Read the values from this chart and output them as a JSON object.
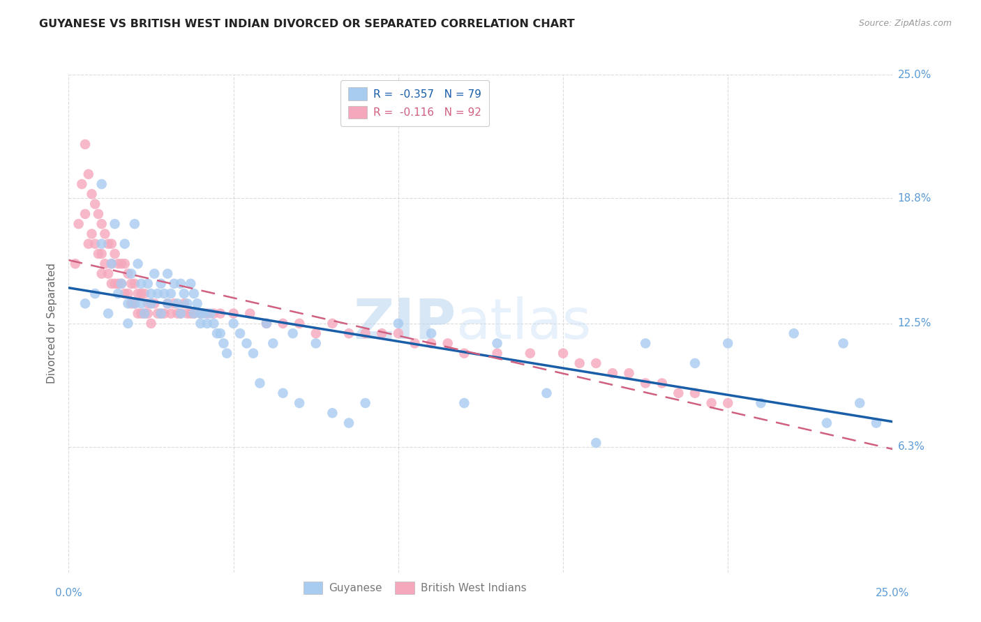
{
  "title": "GUYANESE VS BRITISH WEST INDIAN DIVORCED OR SEPARATED CORRELATION CHART",
  "source": "Source: ZipAtlas.com",
  "ylabel": "Divorced or Separated",
  "watermark_zip": "ZIP",
  "watermark_atlas": "atlas",
  "legend_r1": "R =  -0.357   N = 79",
  "legend_r2": "R =  -0.116   N = 92",
  "color_blue": "#A8CBF0",
  "color_blue_line": "#1A5EA8",
  "color_pink": "#F5A8BC",
  "color_pink_line": "#D06080",
  "color_axis_labels": "#5B9BD5",
  "background_color": "#FFFFFF",
  "grid_color": "#CCCCCC",
  "xlim": [
    0.0,
    0.25
  ],
  "ylim": [
    0.0,
    0.25
  ],
  "ytick_vals": [
    0.063,
    0.125,
    0.188,
    0.25
  ],
  "ytick_labels": [
    "6.3%",
    "12.5%",
    "18.8%",
    "25.0%"
  ],
  "xtick_vals": [
    0.0,
    0.05,
    0.1,
    0.15,
    0.2,
    0.25
  ],
  "guyanese_x": [
    0.005,
    0.008,
    0.01,
    0.01,
    0.012,
    0.013,
    0.014,
    0.015,
    0.016,
    0.017,
    0.018,
    0.018,
    0.019,
    0.02,
    0.02,
    0.021,
    0.022,
    0.022,
    0.023,
    0.024,
    0.025,
    0.025,
    0.026,
    0.027,
    0.028,
    0.028,
    0.029,
    0.03,
    0.03,
    0.031,
    0.032,
    0.033,
    0.034,
    0.034,
    0.035,
    0.036,
    0.037,
    0.038,
    0.038,
    0.039,
    0.04,
    0.04,
    0.041,
    0.042,
    0.043,
    0.044,
    0.045,
    0.046,
    0.047,
    0.048,
    0.05,
    0.052,
    0.054,
    0.056,
    0.058,
    0.06,
    0.062,
    0.065,
    0.068,
    0.07,
    0.075,
    0.08,
    0.085,
    0.09,
    0.1,
    0.11,
    0.12,
    0.13,
    0.145,
    0.16,
    0.175,
    0.19,
    0.2,
    0.21,
    0.22,
    0.23,
    0.235,
    0.24,
    0.245
  ],
  "guyanese_y": [
    0.135,
    0.14,
    0.195,
    0.165,
    0.13,
    0.155,
    0.175,
    0.14,
    0.145,
    0.165,
    0.135,
    0.125,
    0.15,
    0.175,
    0.135,
    0.155,
    0.145,
    0.135,
    0.13,
    0.145,
    0.14,
    0.135,
    0.15,
    0.14,
    0.145,
    0.13,
    0.14,
    0.15,
    0.135,
    0.14,
    0.145,
    0.135,
    0.145,
    0.13,
    0.14,
    0.135,
    0.145,
    0.14,
    0.13,
    0.135,
    0.13,
    0.125,
    0.13,
    0.125,
    0.13,
    0.125,
    0.12,
    0.12,
    0.115,
    0.11,
    0.125,
    0.12,
    0.115,
    0.11,
    0.095,
    0.125,
    0.115,
    0.09,
    0.12,
    0.085,
    0.115,
    0.08,
    0.075,
    0.085,
    0.125,
    0.12,
    0.085,
    0.115,
    0.09,
    0.065,
    0.115,
    0.105,
    0.115,
    0.085,
    0.12,
    0.075,
    0.115,
    0.085,
    0.075
  ],
  "bwi_x": [
    0.002,
    0.003,
    0.004,
    0.005,
    0.005,
    0.006,
    0.006,
    0.007,
    0.007,
    0.008,
    0.008,
    0.009,
    0.009,
    0.01,
    0.01,
    0.01,
    0.011,
    0.011,
    0.012,
    0.012,
    0.013,
    0.013,
    0.013,
    0.014,
    0.014,
    0.015,
    0.015,
    0.016,
    0.016,
    0.017,
    0.017,
    0.018,
    0.018,
    0.019,
    0.019,
    0.02,
    0.02,
    0.021,
    0.021,
    0.022,
    0.022,
    0.023,
    0.023,
    0.024,
    0.024,
    0.025,
    0.025,
    0.026,
    0.027,
    0.028,
    0.029,
    0.03,
    0.031,
    0.032,
    0.033,
    0.034,
    0.035,
    0.036,
    0.037,
    0.038,
    0.04,
    0.042,
    0.044,
    0.046,
    0.05,
    0.055,
    0.06,
    0.065,
    0.07,
    0.075,
    0.08,
    0.085,
    0.09,
    0.095,
    0.1,
    0.105,
    0.11,
    0.115,
    0.12,
    0.13,
    0.14,
    0.15,
    0.155,
    0.16,
    0.165,
    0.17,
    0.175,
    0.18,
    0.185,
    0.19,
    0.195,
    0.2
  ],
  "bwi_y": [
    0.155,
    0.175,
    0.195,
    0.215,
    0.18,
    0.2,
    0.165,
    0.19,
    0.17,
    0.185,
    0.165,
    0.18,
    0.16,
    0.175,
    0.16,
    0.15,
    0.17,
    0.155,
    0.165,
    0.15,
    0.165,
    0.155,
    0.145,
    0.16,
    0.145,
    0.155,
    0.145,
    0.155,
    0.145,
    0.155,
    0.14,
    0.15,
    0.14,
    0.145,
    0.135,
    0.145,
    0.135,
    0.14,
    0.13,
    0.14,
    0.13,
    0.14,
    0.13,
    0.135,
    0.13,
    0.135,
    0.125,
    0.135,
    0.13,
    0.13,
    0.13,
    0.135,
    0.13,
    0.135,
    0.13,
    0.13,
    0.135,
    0.13,
    0.13,
    0.13,
    0.13,
    0.13,
    0.13,
    0.13,
    0.13,
    0.13,
    0.125,
    0.125,
    0.125,
    0.12,
    0.125,
    0.12,
    0.12,
    0.12,
    0.12,
    0.115,
    0.115,
    0.115,
    0.11,
    0.11,
    0.11,
    0.11,
    0.105,
    0.105,
    0.1,
    0.1,
    0.095,
    0.095,
    0.09,
    0.09,
    0.085,
    0.085
  ]
}
